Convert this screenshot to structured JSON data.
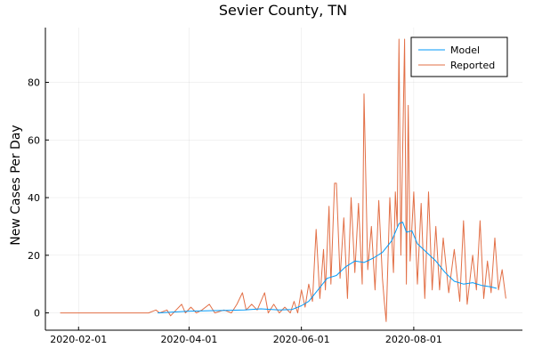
{
  "chart_data": {
    "type": "line",
    "title": "Sevier County, TN",
    "xlabel": "",
    "ylabel": "New Cases Per Day",
    "x_ticks": [
      "2020-02-01",
      "2020-04-01",
      "2020-06-01",
      "2020-08-01"
    ],
    "y_ticks": [
      0,
      20,
      40,
      60,
      80
    ],
    "xlim": [
      "2020-01-14",
      "2020-09-29"
    ],
    "ylim": [
      -6,
      99
    ],
    "grid": true,
    "legend_position": "top-right",
    "series": [
      {
        "name": "Model",
        "color": "#009AFA",
        "points": [
          [
            "2020-03-15",
            0
          ],
          [
            "2020-04-01",
            0.6
          ],
          [
            "2020-04-15",
            0.8
          ],
          [
            "2020-05-01",
            1.0
          ],
          [
            "2020-05-10",
            1.4
          ],
          [
            "2020-05-20",
            1.0
          ],
          [
            "2020-05-27",
            1.2
          ],
          [
            "2020-06-01",
            2.5
          ],
          [
            "2020-06-05",
            4
          ],
          [
            "2020-06-10",
            8
          ],
          [
            "2020-06-15",
            12
          ],
          [
            "2020-06-20",
            13
          ],
          [
            "2020-06-25",
            16
          ],
          [
            "2020-06-30",
            18
          ],
          [
            "2020-07-05",
            17.5
          ],
          [
            "2020-07-10",
            19
          ],
          [
            "2020-07-15",
            21
          ],
          [
            "2020-07-20",
            25
          ],
          [
            "2020-07-24",
            31
          ],
          [
            "2020-07-26",
            31.5
          ],
          [
            "2020-07-28",
            28
          ],
          [
            "2020-07-31",
            28.5
          ],
          [
            "2020-08-03",
            24
          ],
          [
            "2020-08-08",
            21
          ],
          [
            "2020-08-13",
            18
          ],
          [
            "2020-08-18",
            14
          ],
          [
            "2020-08-23",
            11
          ],
          [
            "2020-08-28",
            10
          ],
          [
            "2020-09-02",
            10.5
          ],
          [
            "2020-09-07",
            9.5
          ],
          [
            "2020-09-12",
            9
          ],
          [
            "2020-09-15",
            8.5
          ]
        ]
      },
      {
        "name": "Reported",
        "color": "#E26F46",
        "points": [
          [
            "2020-01-22",
            0
          ],
          [
            "2020-03-10",
            0
          ],
          [
            "2020-03-14",
            1
          ],
          [
            "2020-03-16",
            0
          ],
          [
            "2020-03-20",
            1
          ],
          [
            "2020-03-22",
            -1
          ],
          [
            "2020-03-25",
            1
          ],
          [
            "2020-03-28",
            3
          ],
          [
            "2020-03-30",
            0
          ],
          [
            "2020-04-02",
            2
          ],
          [
            "2020-04-05",
            0
          ],
          [
            "2020-04-08",
            1
          ],
          [
            "2020-04-12",
            3
          ],
          [
            "2020-04-15",
            0
          ],
          [
            "2020-04-20",
            1
          ],
          [
            "2020-04-24",
            0
          ],
          [
            "2020-04-27",
            3
          ],
          [
            "2020-04-30",
            7
          ],
          [
            "2020-05-02",
            1
          ],
          [
            "2020-05-05",
            3
          ],
          [
            "2020-05-08",
            1
          ],
          [
            "2020-05-12",
            7
          ],
          [
            "2020-05-14",
            0
          ],
          [
            "2020-05-17",
            3
          ],
          [
            "2020-05-20",
            0
          ],
          [
            "2020-05-23",
            2
          ],
          [
            "2020-05-26",
            0
          ],
          [
            "2020-05-28",
            4
          ],
          [
            "2020-05-30",
            0
          ],
          [
            "2020-06-01",
            8
          ],
          [
            "2020-06-03",
            2
          ],
          [
            "2020-06-05",
            10
          ],
          [
            "2020-06-07",
            4
          ],
          [
            "2020-06-09",
            29
          ],
          [
            "2020-06-11",
            5
          ],
          [
            "2020-06-13",
            22
          ],
          [
            "2020-06-14",
            8
          ],
          [
            "2020-06-16",
            37
          ],
          [
            "2020-06-17",
            10
          ],
          [
            "2020-06-19",
            45
          ],
          [
            "2020-06-20",
            45
          ],
          [
            "2020-06-22",
            12
          ],
          [
            "2020-06-24",
            33
          ],
          [
            "2020-06-26",
            5
          ],
          [
            "2020-06-28",
            40
          ],
          [
            "2020-06-30",
            14
          ],
          [
            "2020-07-02",
            38
          ],
          [
            "2020-07-04",
            10
          ],
          [
            "2020-07-05",
            76
          ],
          [
            "2020-07-07",
            15
          ],
          [
            "2020-07-09",
            30
          ],
          [
            "2020-07-11",
            8
          ],
          [
            "2020-07-13",
            39
          ],
          [
            "2020-07-15",
            12
          ],
          [
            "2020-07-16",
            4
          ],
          [
            "2020-07-17",
            -3
          ],
          [
            "2020-07-19",
            40
          ],
          [
            "2020-07-21",
            14
          ],
          [
            "2020-07-22",
            42
          ],
          [
            "2020-07-23",
            30
          ],
          [
            "2020-07-24",
            95
          ],
          [
            "2020-07-25",
            20
          ],
          [
            "2020-07-27",
            95
          ],
          [
            "2020-07-28",
            10
          ],
          [
            "2020-07-29",
            72
          ],
          [
            "2020-07-30",
            18
          ],
          [
            "2020-08-01",
            42
          ],
          [
            "2020-08-03",
            10
          ],
          [
            "2020-08-05",
            38
          ],
          [
            "2020-08-07",
            5
          ],
          [
            "2020-08-09",
            42
          ],
          [
            "2020-08-11",
            8
          ],
          [
            "2020-08-13",
            30
          ],
          [
            "2020-08-15",
            8
          ],
          [
            "2020-08-17",
            26
          ],
          [
            "2020-08-20",
            7
          ],
          [
            "2020-08-23",
            22
          ],
          [
            "2020-08-26",
            4
          ],
          [
            "2020-08-28",
            32
          ],
          [
            "2020-08-30",
            3
          ],
          [
            "2020-09-02",
            20
          ],
          [
            "2020-09-04",
            8
          ],
          [
            "2020-09-06",
            32
          ],
          [
            "2020-09-08",
            5
          ],
          [
            "2020-09-10",
            18
          ],
          [
            "2020-09-12",
            7
          ],
          [
            "2020-09-14",
            26
          ],
          [
            "2020-09-16",
            8
          ],
          [
            "2020-09-18",
            15
          ],
          [
            "2020-09-20",
            5
          ]
        ]
      }
    ]
  }
}
